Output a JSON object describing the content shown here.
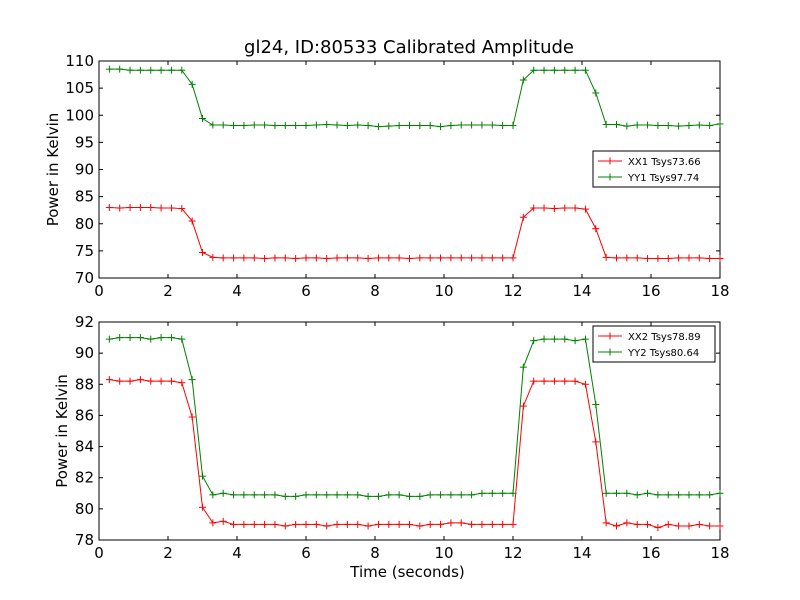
{
  "title": "gl24, ID:80533 Calibrated Amplitude",
  "colors": {
    "XX": "#ff0000",
    "YY": "#008000"
  },
  "chart_data": [
    {
      "type": "line",
      "ylabel": "Power in Kelvin",
      "xlabel": "",
      "xlim": [
        0,
        18
      ],
      "ylim": [
        70,
        110
      ],
      "xticks": [
        "0",
        "2",
        "4",
        "6",
        "8",
        "10",
        "12",
        "14",
        "16",
        "18"
      ],
      "yticks": [
        "70",
        "75",
        "80",
        "85",
        "90",
        "95",
        "100",
        "105",
        "110"
      ],
      "grid": false,
      "legend_position": "center-right",
      "x": [
        0.3,
        0.6,
        0.9,
        1.2,
        1.5,
        1.8,
        2.1,
        2.4,
        2.7,
        3.0,
        3.3,
        3.6,
        3.9,
        4.2,
        4.5,
        4.8,
        5.1,
        5.4,
        5.7,
        6.0,
        6.3,
        6.6,
        6.9,
        7.2,
        7.5,
        7.8,
        8.1,
        8.4,
        8.7,
        9.0,
        9.3,
        9.6,
        9.9,
        10.2,
        10.5,
        10.8,
        11.1,
        11.4,
        11.7,
        12.0,
        12.3,
        12.6,
        12.9,
        13.2,
        13.5,
        13.8,
        14.1,
        14.4,
        14.7,
        15.0,
        15.3,
        15.6,
        15.9,
        16.2,
        16.5,
        16.8,
        17.1,
        17.4,
        17.7,
        18.0
      ],
      "series": [
        {
          "name": "XX1 Tsys73.66",
          "color_key": "XX",
          "values": [
            83.0,
            82.9,
            83.0,
            83.0,
            83.0,
            82.9,
            82.9,
            82.8,
            80.5,
            74.7,
            73.8,
            73.7,
            73.7,
            73.7,
            73.7,
            73.6,
            73.7,
            73.7,
            73.6,
            73.7,
            73.7,
            73.6,
            73.7,
            73.7,
            73.7,
            73.6,
            73.7,
            73.7,
            73.7,
            73.6,
            73.7,
            73.7,
            73.7,
            73.7,
            73.7,
            73.7,
            73.7,
            73.7,
            73.7,
            73.7,
            81.2,
            82.9,
            82.9,
            82.8,
            82.9,
            82.9,
            82.7,
            79.1,
            73.8,
            73.7,
            73.7,
            73.7,
            73.6,
            73.6,
            73.6,
            73.7,
            73.7,
            73.7,
            73.6,
            73.6
          ]
        },
        {
          "name": "YY1 Tsys97.74",
          "color_key": "YY",
          "values": [
            108.5,
            108.5,
            108.3,
            108.3,
            108.3,
            108.3,
            108.3,
            108.3,
            105.7,
            99.4,
            98.2,
            98.2,
            98.1,
            98.1,
            98.2,
            98.2,
            98.1,
            98.1,
            98.1,
            98.1,
            98.2,
            98.3,
            98.2,
            98.1,
            98.2,
            98.1,
            97.9,
            98.0,
            98.1,
            98.1,
            98.1,
            98.1,
            97.9,
            98.1,
            98.2,
            98.2,
            98.2,
            98.2,
            98.1,
            98.1,
            106.5,
            108.3,
            108.3,
            108.3,
            108.3,
            108.3,
            108.3,
            104.1,
            98.3,
            98.3,
            98.0,
            98.2,
            98.2,
            98.1,
            98.1,
            98.0,
            98.1,
            98.2,
            98.1,
            98.4
          ]
        }
      ]
    },
    {
      "type": "line",
      "ylabel": "Power in Kelvin",
      "xlabel": "Time (seconds)",
      "xlim": [
        0,
        18
      ],
      "ylim": [
        78,
        92
      ],
      "xticks": [
        "0",
        "2",
        "4",
        "6",
        "8",
        "10",
        "12",
        "14",
        "16",
        "18"
      ],
      "yticks": [
        "78",
        "80",
        "82",
        "84",
        "86",
        "88",
        "90",
        "92"
      ],
      "grid": false,
      "legend_position": "top-right",
      "x": [
        0.3,
        0.6,
        0.9,
        1.2,
        1.5,
        1.8,
        2.1,
        2.4,
        2.7,
        3.0,
        3.3,
        3.6,
        3.9,
        4.2,
        4.5,
        4.8,
        5.1,
        5.4,
        5.7,
        6.0,
        6.3,
        6.6,
        6.9,
        7.2,
        7.5,
        7.8,
        8.1,
        8.4,
        8.7,
        9.0,
        9.3,
        9.6,
        9.9,
        10.2,
        10.5,
        10.8,
        11.1,
        11.4,
        11.7,
        12.0,
        12.3,
        12.6,
        12.9,
        13.2,
        13.5,
        13.8,
        14.1,
        14.4,
        14.7,
        15.0,
        15.3,
        15.6,
        15.9,
        16.2,
        16.5,
        16.8,
        17.1,
        17.4,
        17.7,
        18.0
      ],
      "series": [
        {
          "name": "XX2 Tsys78.89",
          "color_key": "XX",
          "values": [
            88.3,
            88.2,
            88.2,
            88.3,
            88.2,
            88.2,
            88.2,
            88.1,
            85.9,
            80.1,
            79.1,
            79.2,
            79.0,
            79.0,
            79.0,
            79.0,
            79.0,
            78.9,
            79.0,
            79.0,
            79.0,
            78.9,
            79.0,
            79.0,
            79.0,
            78.9,
            79.0,
            79.0,
            79.0,
            79.0,
            78.9,
            79.0,
            79.0,
            79.1,
            79.1,
            79.0,
            79.0,
            79.0,
            79.0,
            79.0,
            86.6,
            88.2,
            88.2,
            88.2,
            88.2,
            88.2,
            88.0,
            84.3,
            79.1,
            78.9,
            79.1,
            79.0,
            79.0,
            78.8,
            79.0,
            78.9,
            78.9,
            79.0,
            78.9,
            78.9
          ]
        },
        {
          "name": "YY2 Tsys80.64",
          "color_key": "YY",
          "values": [
            90.9,
            91.0,
            91.0,
            91.0,
            90.9,
            91.0,
            91.0,
            90.9,
            88.3,
            82.1,
            80.9,
            81.0,
            80.9,
            80.9,
            80.9,
            80.9,
            80.9,
            80.8,
            80.8,
            80.9,
            80.9,
            80.9,
            80.9,
            80.9,
            80.9,
            80.8,
            80.8,
            80.9,
            80.9,
            80.8,
            80.8,
            80.9,
            80.9,
            80.9,
            80.9,
            80.9,
            81.0,
            81.0,
            81.0,
            81.0,
            89.1,
            90.8,
            90.9,
            90.9,
            90.9,
            90.8,
            90.9,
            86.7,
            81.0,
            81.0,
            81.0,
            80.9,
            81.0,
            80.9,
            80.9,
            80.9,
            80.9,
            80.9,
            80.9,
            81.0
          ]
        }
      ]
    }
  ]
}
